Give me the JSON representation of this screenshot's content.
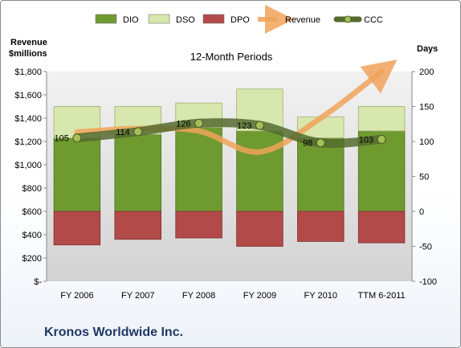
{
  "chart_data": {
    "type": "bar",
    "title": "12-Month Periods",
    "footer": "Kronos Worldwide Inc.",
    "categories": [
      "FY 2006",
      "FY 2007",
      "FY 2008",
      "FY 2009",
      "FY 2010",
      "TTM 6-2011"
    ],
    "left_axis": {
      "label": "Revenue\n$millions",
      "min": 0,
      "max": 1800,
      "step": 200,
      "tick_labels": [
        "$-",
        "$200",
        "$400",
        "$600",
        "$800",
        "$1,000",
        "$1,200",
        "$1,400",
        "$1,600",
        "$1,800"
      ]
    },
    "right_axis": {
      "label": "Days",
      "min": -100,
      "max": 200,
      "step": 50,
      "tick_labels": [
        "-100",
        "-50",
        "0",
        "50",
        "100",
        "150",
        "200"
      ]
    },
    "grid": false,
    "legend_position": "top",
    "series": [
      {
        "name": "DIO",
        "type": "stacked-bar",
        "axis": "right",
        "color": "#6f9a2f",
        "values": [
          105,
          110,
          120,
          115,
          105,
          115
        ]
      },
      {
        "name": "DSO",
        "type": "stacked-bar",
        "axis": "right",
        "color": "#d7e7ad",
        "values": [
          45,
          40,
          35,
          60,
          30,
          35
        ]
      },
      {
        "name": "DPO",
        "type": "stacked-bar-negative",
        "axis": "right",
        "color": "#b34a4a",
        "values": [
          -48,
          -40,
          -38,
          -50,
          -43,
          -45
        ]
      },
      {
        "name": "Revenue",
        "type": "line-arrow",
        "axis": "left",
        "color": "#f0a35a",
        "values": [
          1280,
          1310,
          1290,
          1110,
          1400,
          1800
        ]
      },
      {
        "name": "CCC",
        "type": "line",
        "axis": "right",
        "color": "#556b2f",
        "values": [
          105,
          114,
          126,
          123,
          98,
          103
        ],
        "data_labels": [
          "105",
          "114",
          "126",
          "123",
          "98",
          "103"
        ]
      }
    ]
  }
}
